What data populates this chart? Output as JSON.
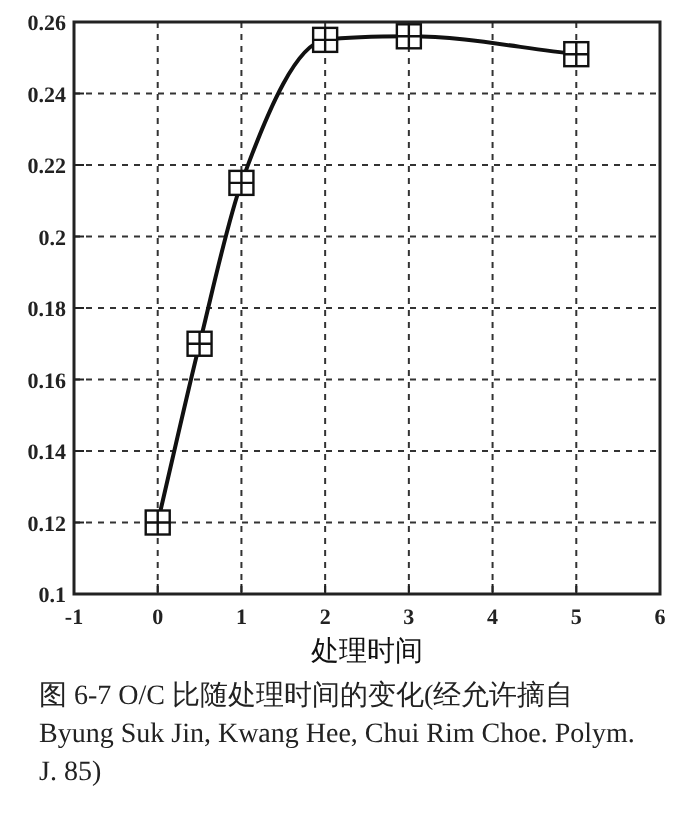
{
  "chart_data": {
    "type": "line",
    "xlabel": "处理时间",
    "x": [
      0,
      0.5,
      1,
      2,
      3,
      5
    ],
    "series": [
      {
        "color": "#111111",
        "values": [
          0.12,
          0.17,
          0.215,
          0.255,
          0.256,
          0.251
        ]
      }
    ],
    "xlim": [
      -1,
      6
    ],
    "xticks": [
      -1,
      0,
      1,
      2,
      3,
      4,
      5,
      6
    ],
    "ylim": [
      0.1,
      0.26
    ],
    "yticks": [
      {
        "value": 0.1,
        "label": "0.1"
      },
      0.12,
      0.14,
      0.16,
      0.18,
      {
        "value": 0.2,
        "label": "0.2"
      },
      0.22,
      0.24,
      0.26
    ],
    "grid": true,
    "marker": "square",
    "line_style": "solid",
    "annotations": [
      "图 6-7 O/C 比随处理时间的变化(经允许摘自 Byung Suk Jin, Kwang Hee, Chui Rim Choe. Polym. J. 85)"
    ]
  }
}
